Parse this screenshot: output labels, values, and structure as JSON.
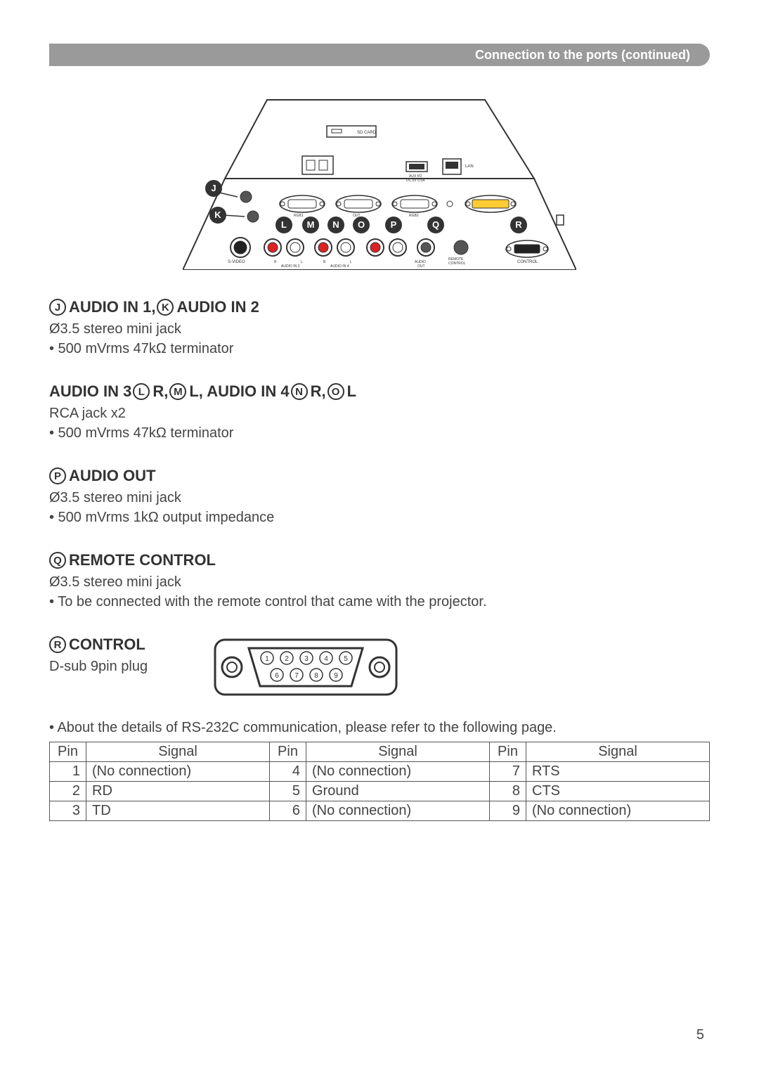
{
  "header": "Connection to the ports (continued)",
  "diagram": {
    "labels": [
      "J",
      "K",
      "L",
      "M",
      "N",
      "O",
      "P",
      "Q",
      "R"
    ],
    "tiny_labels": [
      "SD CARD",
      "AUX I/O",
      "DC 5V 0.5A",
      "LAN",
      "RGB1",
      "RGB2",
      "S-VIDEO",
      "AUDIO IN 3",
      "AUDIO IN 4",
      "AUDIO OUT",
      "REMOTE CONTROL",
      "CONTROL",
      "R",
      "L",
      "B",
      "L"
    ]
  },
  "sections": {
    "audio_in_12": {
      "letters": [
        "J",
        "K"
      ],
      "title_parts": [
        "AUDIO IN 1, ",
        "AUDIO IN 2"
      ],
      "lines": [
        "Ø3.5 stereo mini jack",
        "• 500 mVrms 47kΩ terminator"
      ]
    },
    "audio_in_34": {
      "prefix": "AUDIO IN 3 ",
      "letters": [
        "L",
        "M",
        "N",
        "O"
      ],
      "mid_parts": [
        "R, ",
        "L, AUDIO IN 4 ",
        "R, ",
        "L"
      ],
      "lines": [
        "RCA jack x2",
        "• 500 mVrms 47kΩ terminator"
      ]
    },
    "audio_out": {
      "letter": "P",
      "title": "AUDIO OUT",
      "lines": [
        "Ø3.5 stereo mini jack",
        "• 500 mVrms 1kΩ output impedance"
      ]
    },
    "remote": {
      "letter": "Q",
      "title": "REMOTE CONTROL",
      "lines": [
        "Ø3.5 stereo mini jack",
        "• To be connected with the remote control that came with the projector."
      ]
    },
    "control": {
      "letter": "R",
      "title": "CONTROL",
      "lines": [
        "D-sub 9pin plug"
      ]
    }
  },
  "dsub_pins": [
    "1",
    "2",
    "3",
    "4",
    "5",
    "6",
    "7",
    "8",
    "9"
  ],
  "table_note": "• About the details of RS-232C communication, please refer to the following page.",
  "pin_table": {
    "headers": [
      "Pin",
      "Signal",
      "Pin",
      "Signal",
      "Pin",
      "Signal"
    ],
    "rows": [
      [
        "1",
        "(No connection)",
        "4",
        "(No connection)",
        "7",
        "RTS"
      ],
      [
        "2",
        "RD",
        "5",
        "Ground",
        "8",
        "CTS"
      ],
      [
        "3",
        "TD",
        "6",
        "(No connection)",
        "9",
        "(No connection)"
      ]
    ]
  },
  "page_number": "5",
  "colors": {
    "header_bg": "#9a9a9a",
    "text": "#333333",
    "rca_colors": [
      "#d22",
      "#fff",
      "#ee2",
      "#5c5",
      "#d22",
      "#fff",
      "#d22",
      "#fff"
    ]
  }
}
